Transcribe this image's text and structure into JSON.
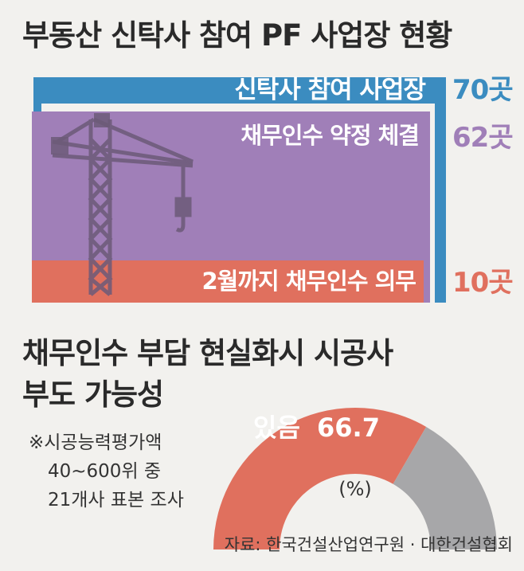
{
  "top_chart": {
    "title": "부동산 신탁사 참여 PF 사업장 현황",
    "chart_data": {
      "type": "nested-area",
      "series": [
        {
          "name": "신탁사 참여 사업장",
          "value": 70,
          "unit": "곳",
          "display": "70곳",
          "color": "#3b8cc0"
        },
        {
          "name": "채무인수 약정 체결",
          "value": 62,
          "unit": "곳",
          "display": "62곳",
          "color": "#a07fb8"
        },
        {
          "name": "2월까지 채무인수 의무",
          "value": 10,
          "unit": "곳",
          "display": "10곳",
          "color": "#e0705e"
        }
      ]
    }
  },
  "bottom_chart": {
    "title_lines": [
      "채무인수 부담 현실화시 시공사",
      "부도 가능성"
    ],
    "note_lines": [
      "※시공능력평가액",
      "40~600위 중",
      "21개사 표본 조사"
    ],
    "chart_data": {
      "type": "pie",
      "shape": "half-donut",
      "unit": "(%)",
      "slices": [
        {
          "label": "있음",
          "value": 66.7,
          "display": "66.7",
          "color": "#e0705e"
        },
        {
          "label": "",
          "value": 33.3,
          "color": "#a7a7a9"
        }
      ]
    }
  },
  "source": "자료: 한국건설산업연구원 · 대한건설협회"
}
